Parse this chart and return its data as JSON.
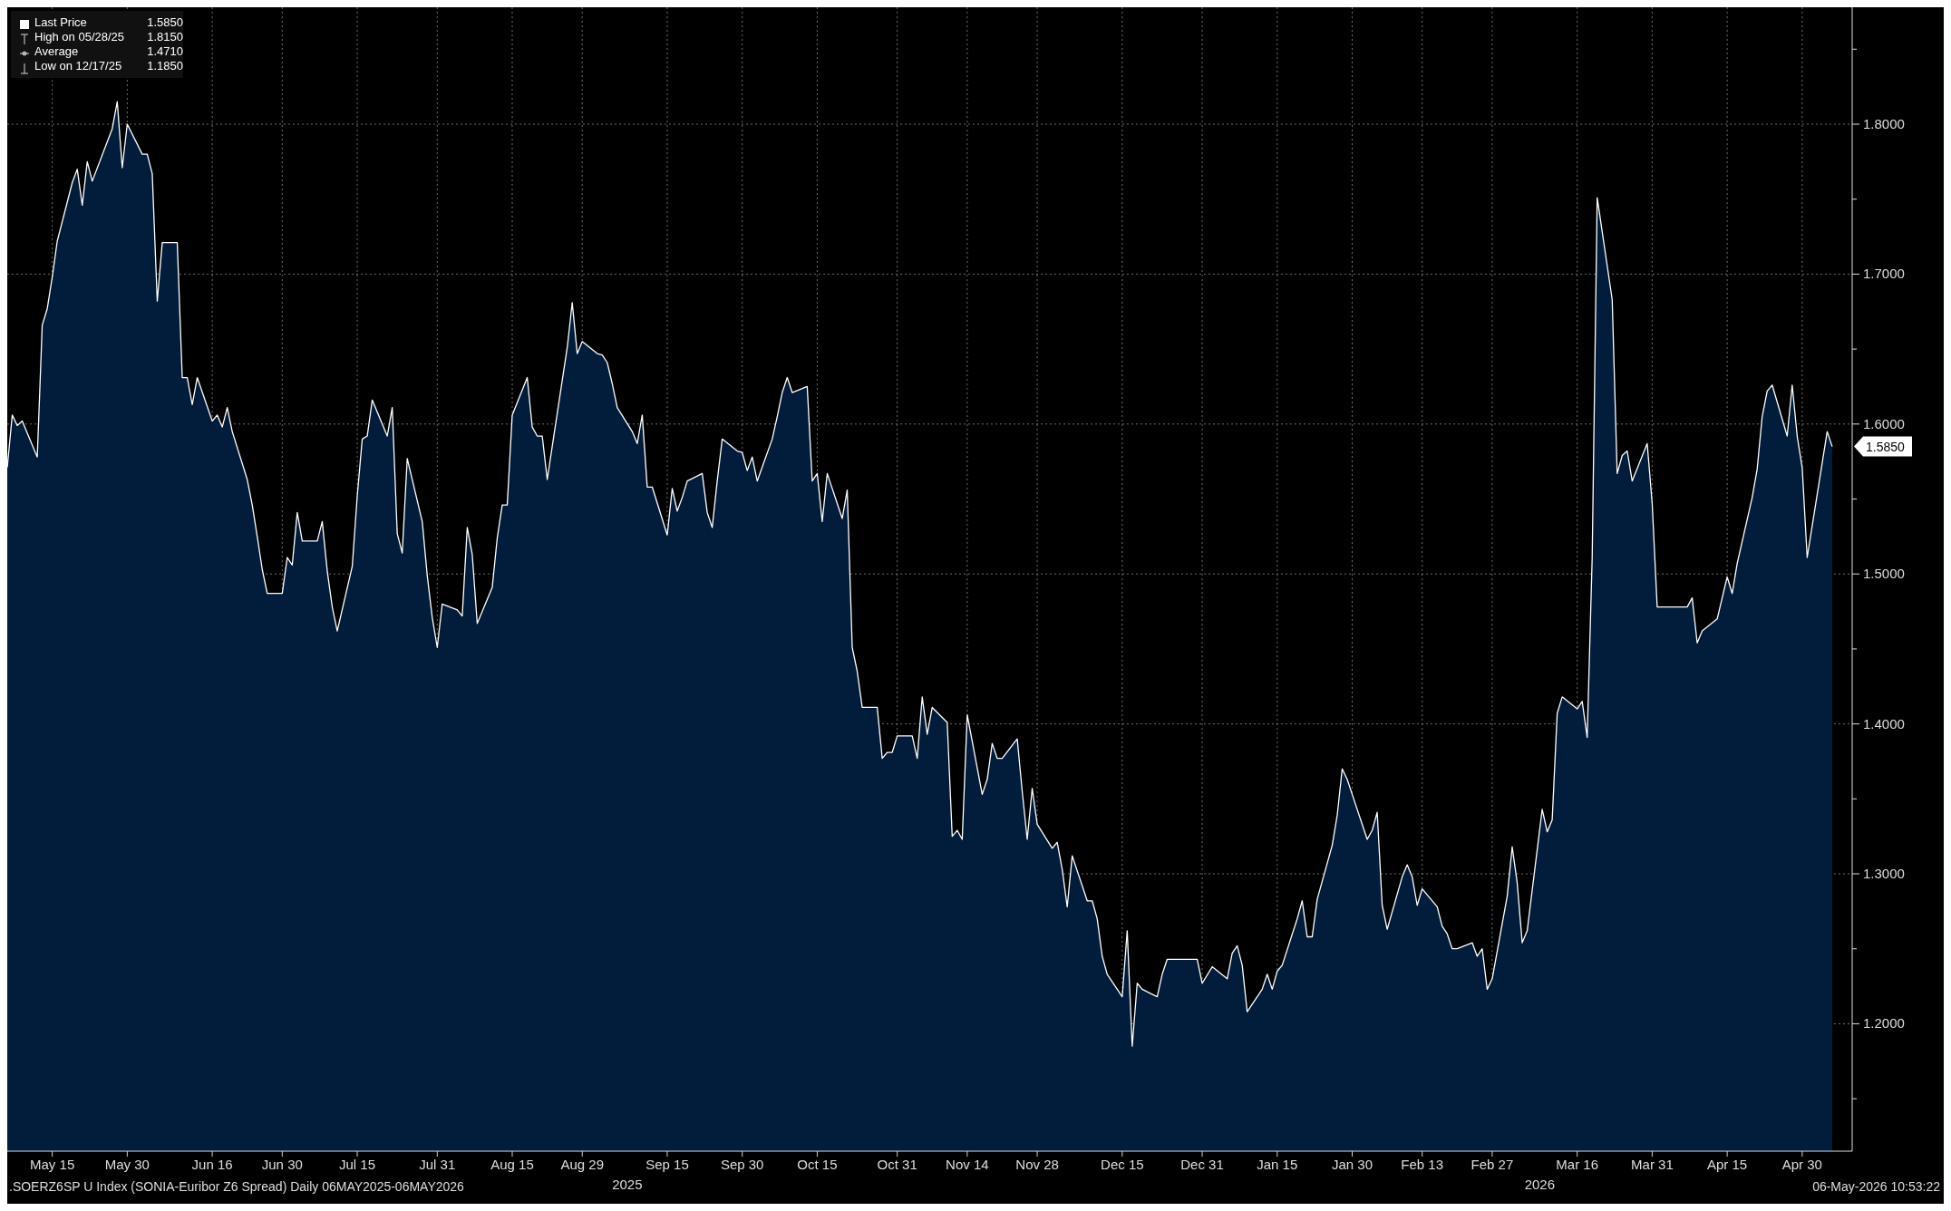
{
  "chart_data": {
    "type": "area",
    "legend": "top left",
    "grid": true,
    "series": [
      {
        "name": "Last Price",
        "color": "#ffffff",
        "x": [
          "2025-05-06",
          "2025-05-07",
          "2025-05-08",
          "2025-05-09",
          "2025-05-12",
          "2025-05-13",
          "2025-05-14",
          "2025-05-15",
          "2025-05-16",
          "2025-05-19",
          "2025-05-20",
          "2025-05-21",
          "2025-05-22",
          "2025-05-23",
          "2025-05-27",
          "2025-05-28",
          "2025-05-29",
          "2025-05-30",
          "2025-06-02",
          "2025-06-03",
          "2025-06-04",
          "2025-06-05",
          "2025-06-06",
          "2025-06-09",
          "2025-06-10",
          "2025-06-11",
          "2025-06-12",
          "2025-06-13",
          "2025-06-16",
          "2025-06-17",
          "2025-06-18",
          "2025-06-19",
          "2025-06-20",
          "2025-06-23",
          "2025-06-24",
          "2025-06-25",
          "2025-06-26",
          "2025-06-27",
          "2025-06-30",
          "2025-07-01",
          "2025-07-02",
          "2025-07-03",
          "2025-07-04",
          "2025-07-07",
          "2025-07-08",
          "2025-07-09",
          "2025-07-10",
          "2025-07-11",
          "2025-07-14",
          "2025-07-15",
          "2025-07-16",
          "2025-07-17",
          "2025-07-18",
          "2025-07-21",
          "2025-07-22",
          "2025-07-23",
          "2025-07-24",
          "2025-07-25",
          "2025-07-28",
          "2025-07-29",
          "2025-07-30",
          "2025-07-31",
          "2025-08-01",
          "2025-08-04",
          "2025-08-05",
          "2025-08-06",
          "2025-08-07",
          "2025-08-08",
          "2025-08-11",
          "2025-08-12",
          "2025-08-13",
          "2025-08-14",
          "2025-08-15",
          "2025-08-18",
          "2025-08-19",
          "2025-08-20",
          "2025-08-21",
          "2025-08-22",
          "2025-08-26",
          "2025-08-27",
          "2025-08-28",
          "2025-08-29",
          "2025-09-01",
          "2025-09-02",
          "2025-09-03",
          "2025-09-04",
          "2025-09-05",
          "2025-09-08",
          "2025-09-09",
          "2025-09-10",
          "2025-09-11",
          "2025-09-12",
          "2025-09-15",
          "2025-09-16",
          "2025-09-17",
          "2025-09-18",
          "2025-09-19",
          "2025-09-22",
          "2025-09-23",
          "2025-09-24",
          "2025-09-25",
          "2025-09-26",
          "2025-09-29",
          "2025-09-30",
          "2025-10-01",
          "2025-10-02",
          "2025-10-03",
          "2025-10-06",
          "2025-10-07",
          "2025-10-08",
          "2025-10-09",
          "2025-10-10",
          "2025-10-13",
          "2025-10-14",
          "2025-10-15",
          "2025-10-16",
          "2025-10-17",
          "2025-10-20",
          "2025-10-21",
          "2025-10-22",
          "2025-10-23",
          "2025-10-24",
          "2025-10-27",
          "2025-10-28",
          "2025-10-29",
          "2025-10-30",
          "2025-10-31",
          "2025-11-03",
          "2025-11-04",
          "2025-11-05",
          "2025-11-06",
          "2025-11-07",
          "2025-11-10",
          "2025-11-11",
          "2025-11-12",
          "2025-11-13",
          "2025-11-14",
          "2025-11-17",
          "2025-11-18",
          "2025-11-19",
          "2025-11-20",
          "2025-11-21",
          "2025-11-24",
          "2025-11-25",
          "2025-11-26",
          "2025-11-27",
          "2025-11-28",
          "2025-12-01",
          "2025-12-02",
          "2025-12-03",
          "2025-12-04",
          "2025-12-05",
          "2025-12-08",
          "2025-12-09",
          "2025-12-10",
          "2025-12-11",
          "2025-12-12",
          "2025-12-15",
          "2025-12-16",
          "2025-12-17",
          "2025-12-18",
          "2025-12-19",
          "2025-12-22",
          "2025-12-23",
          "2025-12-24",
          "2025-12-29",
          "2025-12-30",
          "2025-12-31",
          "2026-01-02",
          "2026-01-05",
          "2026-01-06",
          "2026-01-07",
          "2026-01-08",
          "2026-01-09",
          "2026-01-12",
          "2026-01-13",
          "2026-01-14",
          "2026-01-15",
          "2026-01-16",
          "2026-01-19",
          "2026-01-20",
          "2026-01-21",
          "2026-01-22",
          "2026-01-23",
          "2026-01-26",
          "2026-01-27",
          "2026-01-28",
          "2026-01-29",
          "2026-01-30",
          "2026-02-02",
          "2026-02-03",
          "2026-02-04",
          "2026-02-05",
          "2026-02-06",
          "2026-02-09",
          "2026-02-10",
          "2026-02-11",
          "2026-02-12",
          "2026-02-13",
          "2026-02-16",
          "2026-02-17",
          "2026-02-18",
          "2026-02-19",
          "2026-02-20",
          "2026-02-23",
          "2026-02-24",
          "2026-02-25",
          "2026-02-26",
          "2026-02-27",
          "2026-03-02",
          "2026-03-03",
          "2026-03-04",
          "2026-03-05",
          "2026-03-06",
          "2026-03-09",
          "2026-03-10",
          "2026-03-11",
          "2026-03-12",
          "2026-03-13",
          "2026-03-16",
          "2026-03-17",
          "2026-03-18",
          "2026-03-19",
          "2026-03-20",
          "2026-03-23",
          "2026-03-24",
          "2026-03-25",
          "2026-03-26",
          "2026-03-27",
          "2026-03-30",
          "2026-03-31",
          "2026-04-01",
          "2026-04-02",
          "2026-04-07",
          "2026-04-08",
          "2026-04-09",
          "2026-04-10",
          "2026-04-13",
          "2026-04-14",
          "2026-04-15",
          "2026-04-16",
          "2026-04-17",
          "2026-04-20",
          "2026-04-21",
          "2026-04-22",
          "2026-04-23",
          "2026-04-24",
          "2026-04-27",
          "2026-04-28",
          "2026-04-29",
          "2026-04-30",
          "2026-05-01",
          "2026-05-05",
          "2026-05-06"
        ],
        "values": [
          1.571,
          1.606,
          1.599,
          1.602,
          1.578,
          1.666,
          1.677,
          1.698,
          1.722,
          1.761,
          1.77,
          1.746,
          1.775,
          1.762,
          1.797,
          1.815,
          1.771,
          1.8,
          1.78,
          1.78,
          1.767,
          1.682,
          1.721,
          1.721,
          1.631,
          1.631,
          1.613,
          1.631,
          1.602,
          1.606,
          1.598,
          1.611,
          1.595,
          1.563,
          1.546,
          1.525,
          1.503,
          1.487,
          1.487,
          1.511,
          1.506,
          1.541,
          1.522,
          1.522,
          1.535,
          1.502,
          1.478,
          1.462,
          1.505,
          1.552,
          1.59,
          1.592,
          1.616,
          1.592,
          1.611,
          1.527,
          1.514,
          1.577,
          1.535,
          1.499,
          1.471,
          1.451,
          1.48,
          1.476,
          1.472,
          1.531,
          1.513,
          1.467,
          1.491,
          1.524,
          1.546,
          1.546,
          1.606,
          1.631,
          1.598,
          1.592,
          1.592,
          1.563,
          1.651,
          1.681,
          1.647,
          1.655,
          1.647,
          1.646,
          1.641,
          1.627,
          1.611,
          1.595,
          1.587,
          1.606,
          1.558,
          1.558,
          1.526,
          1.557,
          1.542,
          1.551,
          1.562,
          1.567,
          1.541,
          1.531,
          1.562,
          1.59,
          1.582,
          1.581,
          1.569,
          1.578,
          1.562,
          1.59,
          1.605,
          1.621,
          1.631,
          1.621,
          1.625,
          1.562,
          1.567,
          1.535,
          1.567,
          1.537,
          1.556,
          1.451,
          1.435,
          1.411,
          1.411,
          1.377,
          1.381,
          1.381,
          1.392,
          1.392,
          1.377,
          1.418,
          1.393,
          1.411,
          1.401,
          1.325,
          1.329,
          1.323,
          1.406,
          1.353,
          1.363,
          1.387,
          1.377,
          1.377,
          1.39,
          1.355,
          1.323,
          1.357,
          1.333,
          1.317,
          1.321,
          1.303,
          1.278,
          1.312,
          1.282,
          1.282,
          1.27,
          1.245,
          1.233,
          1.218,
          1.262,
          1.185,
          1.227,
          1.223,
          1.218,
          1.233,
          1.243,
          1.243,
          1.243,
          1.227,
          1.238,
          1.23,
          1.247,
          1.252,
          1.239,
          1.208,
          1.223,
          1.233,
          1.223,
          1.235,
          1.239,
          1.27,
          1.282,
          1.258,
          1.258,
          1.283,
          1.319,
          1.339,
          1.37,
          1.363,
          1.353,
          1.323,
          1.329,
          1.341,
          1.279,
          1.263,
          1.298,
          1.306,
          1.298,
          1.279,
          1.29,
          1.278,
          1.265,
          1.26,
          1.25,
          1.25,
          1.254,
          1.245,
          1.25,
          1.223,
          1.23,
          1.285,
          1.318,
          1.294,
          1.254,
          1.262,
          1.343,
          1.328,
          1.336,
          1.407,
          1.418,
          1.41,
          1.415,
          1.391,
          1.511,
          1.751,
          1.683,
          1.567,
          1.579,
          1.582,
          1.562,
          1.587,
          1.547,
          1.478,
          1.478,
          1.478,
          1.484,
          1.454,
          1.462,
          1.47,
          1.484,
          1.498,
          1.487,
          1.507,
          1.551,
          1.57,
          1.605,
          1.622,
          1.626,
          1.592,
          1.626,
          1.592,
          1.571,
          1.511,
          1.595,
          1.585
        ]
      }
    ],
    "xlim": [
      "2025-05-06",
      "2026-05-10"
    ],
    "xticks": [
      {
        "value": "2025-05-15",
        "label": "May 15"
      },
      {
        "value": "2025-05-30",
        "label": "May 30"
      },
      {
        "value": "2025-06-16",
        "label": "Jun 16"
      },
      {
        "value": "2025-06-30",
        "label": "Jun 30"
      },
      {
        "value": "2025-07-15",
        "label": "Jul 15"
      },
      {
        "value": "2025-07-31",
        "label": "Jul 31"
      },
      {
        "value": "2025-08-15",
        "label": "Aug 15"
      },
      {
        "value": "2025-08-29",
        "label": "Aug 29"
      },
      {
        "value": "2025-09-15",
        "label": "Sep 15"
      },
      {
        "value": "2025-09-30",
        "label": "Sep 30"
      },
      {
        "value": "2025-10-15",
        "label": "Oct 15"
      },
      {
        "value": "2025-10-31",
        "label": "Oct 31"
      },
      {
        "value": "2025-11-14",
        "label": "Nov 14"
      },
      {
        "value": "2025-11-28",
        "label": "Nov 28"
      },
      {
        "value": "2025-12-15",
        "label": "Dec 15"
      },
      {
        "value": "2025-12-31",
        "label": "Dec 31"
      },
      {
        "value": "2026-01-15",
        "label": "Jan 15"
      },
      {
        "value": "2026-01-30",
        "label": "Jan 30"
      },
      {
        "value": "2026-02-13",
        "label": "Feb 13"
      },
      {
        "value": "2026-02-27",
        "label": "Feb 27"
      },
      {
        "value": "2026-03-16",
        "label": "Mar 16"
      },
      {
        "value": "2026-03-31",
        "label": "Mar 31"
      },
      {
        "value": "2026-04-15",
        "label": "Apr 15"
      },
      {
        "value": "2026-04-30",
        "label": "Apr 30"
      }
    ],
    "ylim": [
      1.115,
      1.878
    ],
    "yticks": [
      {
        "value": 1.15,
        "label": null
      },
      {
        "value": 1.2,
        "label": "1.2000"
      },
      {
        "value": 1.25,
        "label": null
      },
      {
        "value": 1.3,
        "label": "1.3000"
      },
      {
        "value": 1.35,
        "label": null
      },
      {
        "value": 1.4,
        "label": "1.4000"
      },
      {
        "value": 1.45,
        "label": null
      },
      {
        "value": 1.5,
        "label": "1.5000"
      },
      {
        "value": 1.55,
        "label": null
      },
      {
        "value": 1.6,
        "label": "1.6000"
      },
      {
        "value": 1.65,
        "label": null
      },
      {
        "value": 1.7,
        "label": "1.7000"
      },
      {
        "value": 1.75,
        "label": null
      },
      {
        "value": 1.8,
        "label": "1.8000"
      },
      {
        "value": 1.85,
        "label": null
      }
    ],
    "annotations": [
      "1.5850",
      "High on 05/28/25",
      "1.8150",
      "Average",
      "1.4710",
      "Low on 12/17/25",
      "1.1850",
      ".SOERZ6SP U Index (SONIA-Euribor Z6 Spread) Daily 06MAY2025-06MAY2026",
      "06-May-2026 10:53:22",
      "2025",
      "2026",
      {
        "text": "1.5850",
        "x": "2026-05-06",
        "y": 1.585
      }
    ]
  }
}
